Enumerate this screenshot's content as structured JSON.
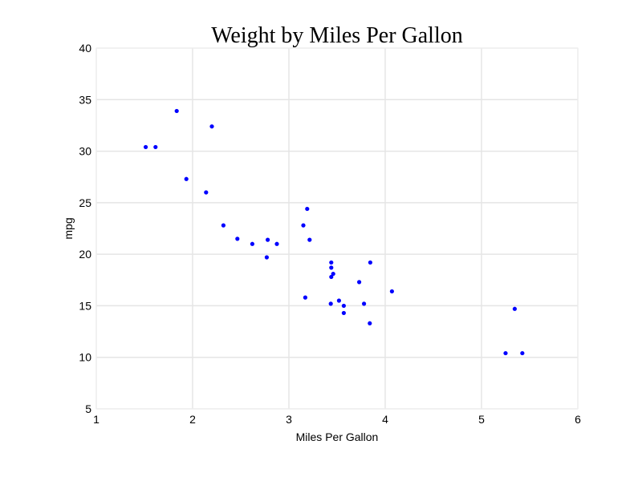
{
  "chart_data": {
    "type": "scatter",
    "title": "Weight by Miles Per Gallon",
    "xlabel": "Miles Per Gallon",
    "ylabel": "mpg",
    "xlim": [
      1,
      6
    ],
    "ylim": [
      5,
      40
    ],
    "xticks": [
      1,
      2,
      3,
      4,
      5,
      6
    ],
    "yticks": [
      5,
      10,
      15,
      20,
      25,
      30,
      35,
      40
    ],
    "grid": true,
    "marker_color": "#0000ff",
    "points": [
      {
        "x": 1.513,
        "y": 30.4
      },
      {
        "x": 1.615,
        "y": 30.4
      },
      {
        "x": 1.835,
        "y": 33.9
      },
      {
        "x": 1.935,
        "y": 27.3
      },
      {
        "x": 2.14,
        "y": 26.0
      },
      {
        "x": 2.2,
        "y": 32.4
      },
      {
        "x": 2.32,
        "y": 22.8
      },
      {
        "x": 2.465,
        "y": 21.5
      },
      {
        "x": 2.62,
        "y": 21.0
      },
      {
        "x": 2.77,
        "y": 19.7
      },
      {
        "x": 2.78,
        "y": 21.4
      },
      {
        "x": 2.875,
        "y": 21.0
      },
      {
        "x": 3.15,
        "y": 22.8
      },
      {
        "x": 3.17,
        "y": 15.8
      },
      {
        "x": 3.19,
        "y": 24.4
      },
      {
        "x": 3.215,
        "y": 21.4
      },
      {
        "x": 3.435,
        "y": 15.2
      },
      {
        "x": 3.44,
        "y": 18.7
      },
      {
        "x": 3.44,
        "y": 17.8
      },
      {
        "x": 3.44,
        "y": 19.2
      },
      {
        "x": 3.46,
        "y": 18.1
      },
      {
        "x": 3.52,
        "y": 15.5
      },
      {
        "x": 3.57,
        "y": 14.3
      },
      {
        "x": 3.57,
        "y": 15.0
      },
      {
        "x": 3.73,
        "y": 17.3
      },
      {
        "x": 3.78,
        "y": 15.2
      },
      {
        "x": 3.84,
        "y": 13.3
      },
      {
        "x": 3.845,
        "y": 19.2
      },
      {
        "x": 4.07,
        "y": 16.4
      },
      {
        "x": 5.25,
        "y": 10.4
      },
      {
        "x": 5.345,
        "y": 14.7
      },
      {
        "x": 5.424,
        "y": 10.4
      }
    ]
  }
}
